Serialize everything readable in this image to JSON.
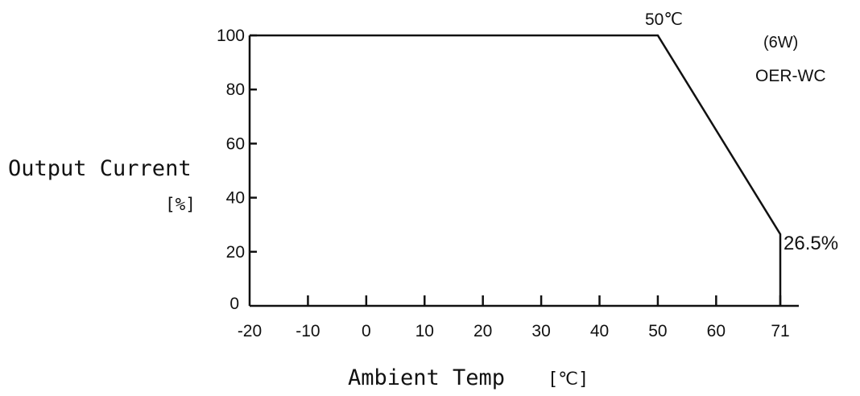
{
  "chart_data": {
    "type": "line",
    "title": "",
    "xlabel": "Ambient Temp",
    "xlabel_unit": "[℃]",
    "ylabel": "Output Current",
    "ylabel_unit": "[%]",
    "xlim": [
      -20,
      74
    ],
    "ylim": [
      0,
      100
    ],
    "x_ticks": [
      -20,
      -10,
      0,
      10,
      20,
      30,
      40,
      50,
      60,
      71
    ],
    "y_ticks": [
      0,
      20,
      40,
      60,
      80,
      100
    ],
    "grid": false,
    "series": [
      {
        "x": [
          -20,
          50,
          71,
          71
        ],
        "y": [
          100,
          100,
          26.5,
          0
        ]
      }
    ],
    "annotations": {
      "knee_label": "50℃",
      "end_label": "26.5%",
      "model_power": "(6W)",
      "model_name": "OER-WC"
    }
  }
}
